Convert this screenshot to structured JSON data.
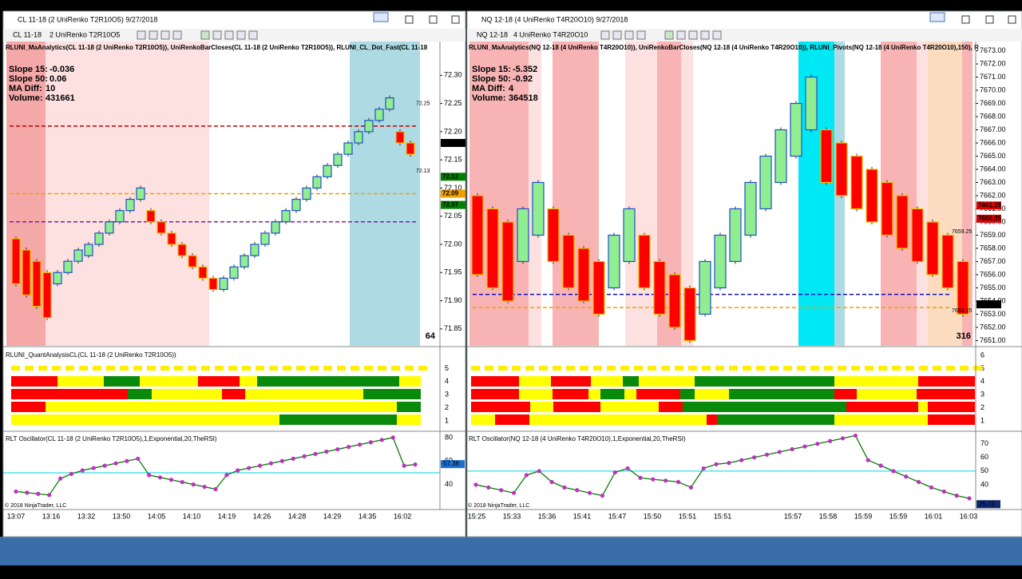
{
  "windows": [
    {
      "title": "CL 11-18 (2 UniRenko T2R10O5)  9/27/2018",
      "instrument": "CL 11-18",
      "bars_type": "2 UniRenko T2R10O5",
      "main": {
        "header": "RLUNI_MaAnalytics(CL 11-18 (2 UniRenko T2R10O5)), UniRenkoBarCloses(CL 11-18 (2 UniRenko T2R10O5)), RLUNI_CL_Dot_Fast(CL 11-18",
        "stats": [
          {
            "label": "Slope 15:",
            "value": -0.036,
            "color": "#e00000"
          },
          {
            "label": "Slope 50:",
            "value": 0.06,
            "color": "#008000"
          },
          {
            "label": "MA Diff:",
            "value": 10,
            "color": "#000000"
          },
          {
            "label": "Volume:",
            "value": 431661,
            "color": "#000000"
          }
        ],
        "ylim": [
          71.82,
          72.36
        ],
        "yticks": [
          {
            "value": 72.3,
            "label": "72.30"
          },
          72.25,
          {
            "value": 72.2,
            "label": "72.20"
          },
          72.15,
          {
            "value": 72.1,
            "label": "72.10"
          },
          72.05,
          {
            "value": 72,
            "label": "72.00"
          },
          71.95,
          {
            "value": 71.9,
            "label": "71.90"
          },
          71.85
        ],
        "candles": {
          "open": [
            72.01,
            71.99,
            71.97,
            71.95,
            71.93,
            71.95,
            71.97,
            71.98,
            72.0,
            72.02,
            72.04,
            72.06,
            72.08,
            72.06,
            72.04,
            72.02,
            72.0,
            71.98,
            71.96,
            71.94,
            71.92,
            71.94,
            71.96,
            71.98,
            72.0,
            72.02,
            72.04,
            72.06,
            72.08,
            72.1,
            72.12,
            72.14,
            72.16,
            72.18,
            72.2,
            72.22,
            72.24,
            72.2,
            72.18
          ],
          "close": [
            71.93,
            71.91,
            71.89,
            71.87,
            71.95,
            71.97,
            71.99,
            72.0,
            72.02,
            72.04,
            72.06,
            72.08,
            72.1,
            72.04,
            72.02,
            72.0,
            71.98,
            71.96,
            71.94,
            71.92,
            71.94,
            71.96,
            71.98,
            72.0,
            72.02,
            72.04,
            72.06,
            72.08,
            72.1,
            72.12,
            72.14,
            72.16,
            72.18,
            72.2,
            72.22,
            72.24,
            72.26,
            72.18,
            72.16
          ]
        },
        "levels": [
          {
            "value": 72.21,
            "color": "#c00000"
          },
          {
            "value": 72.09,
            "color": "#f0a000"
          },
          {
            "value": 72.04,
            "color": "#7a1fa0"
          }
        ],
        "price_markers": [
          {
            "value": 72.25,
            "color": "none"
          },
          {
            "value": 72.13,
            "color": "none"
          },
          {
            "value": 72.18,
            "color": "#000000"
          },
          {
            "value": 72.12,
            "color": "#008000"
          },
          {
            "value": 72.09,
            "color": "#f0a000"
          },
          {
            "value": 72.07,
            "color": "#008000"
          }
        ],
        "bar_count": 64
      },
      "quant": {
        "header": "RLUNI_QuantAnalysisCL(CL 11-18 (2 UniRenko T2R10O5))",
        "ticks": [
          1,
          2,
          3,
          4,
          5
        ]
      },
      "oscillator": {
        "header": "RLT Oscillator(CL 11-18 (2 UniRenko T2R10O5),1,Exponential,20,TheRSI)",
        "ylim": [
          20,
          84
        ],
        "yticks": [
          40,
          60,
          80
        ],
        "level": 50,
        "values": [
          34,
          33,
          32,
          31,
          45,
          49,
          52,
          54,
          56,
          58,
          60,
          62,
          48,
          46,
          44,
          42,
          40,
          38,
          36,
          48,
          52,
          54,
          56,
          58,
          60,
          62,
          64,
          66,
          68,
          70,
          72,
          74,
          76,
          78,
          80,
          56,
          57
        ],
        "last": 57.36,
        "last_color": "#1e6fd0",
        "copyright": "© 2018 NinjaTrader, LLC"
      },
      "time_labels": [
        "13:07",
        "13:16",
        "13:32",
        "13:50",
        "14:05",
        "14:10",
        "14:19",
        "14:26",
        "14:28",
        "14:29",
        "14:35",
        "16:02"
      ]
    },
    {
      "title": "NQ 12-18 (4 UniRenko T4R20O10)  9/27/2018",
      "instrument": "NQ 12-18",
      "bars_type": "4 UniRenko T4R20O10",
      "main": {
        "header": "RLUNI_MaAnalytics(NQ 12-18 (4 UniRenko T4R20O10)), UniRenkoBarCloses(NQ 12-18 (4 UniRenko T4R20O10)), RLUNI_Pivots(NQ 12-18 (4 UniRenko T4R20O10),150), R",
        "stats": [
          {
            "label": "Slope 15:",
            "value": -5.352,
            "color": "#e00000"
          },
          {
            "label": "Slope 50:",
            "value": -0.92,
            "color": "#e00000"
          },
          {
            "label": "MA Diff:",
            "value": 4,
            "color": "#000000"
          },
          {
            "label": "Volume:",
            "value": 364518,
            "color": "#000000"
          }
        ],
        "ylim": [
          7650.6,
          7673.7
        ],
        "yticks": [
          {
            "value": 7651,
            "label": "7651.00"
          },
          {
            "value": 7652,
            "label": "7652.00"
          },
          {
            "value": 7653,
            "label": "7653.00"
          },
          {
            "value": 7654,
            "label": "7654.00"
          },
          {
            "value": 7655,
            "label": "7655.00"
          },
          {
            "value": 7656,
            "label": "7656.00"
          },
          {
            "value": 7657,
            "label": "7657.00"
          },
          {
            "value": 7658,
            "label": "7658.00"
          },
          {
            "value": 7659,
            "label": "7659.00"
          },
          {
            "value": 7660,
            "label": "7660.00"
          },
          {
            "value": 7661,
            "label": "7661.00"
          },
          {
            "value": 7662,
            "label": "7662.00"
          },
          {
            "value": 7663,
            "label": "7663.00"
          },
          {
            "value": 7664,
            "label": "7664.00"
          },
          {
            "value": 7665,
            "label": "7665.00"
          },
          {
            "value": 7666,
            "label": "7666.00"
          },
          {
            "value": 7667,
            "label": "7667.00"
          },
          {
            "value": 7668,
            "label": "7668.00"
          },
          {
            "value": 7669,
            "label": "7669.00"
          },
          {
            "value": 7670,
            "label": "7670.00"
          },
          {
            "value": 7671,
            "label": "7671.00"
          },
          {
            "value": 7672,
            "label": "7672.00"
          },
          {
            "value": 7673,
            "label": "7673.00"
          }
        ],
        "candles": {
          "open": [
            7662,
            7661,
            7660,
            7657,
            7659,
            7661,
            7659,
            7658,
            7657,
            7655,
            7657,
            7659,
            7657,
            7656,
            7655,
            7653,
            7655,
            7657,
            7659,
            7661,
            7663,
            7665,
            7667,
            7667,
            7666,
            7665,
            7664,
            7663,
            7662,
            7661,
            7660,
            7659,
            7657
          ],
          "close": [
            7656,
            7655,
            7654,
            7661,
            7663,
            7657,
            7655,
            7654,
            7653,
            7659,
            7661,
            7655,
            7653,
            7652,
            7651,
            7657,
            7659,
            7661,
            7663,
            7665,
            7667,
            7669,
            7671,
            7663,
            7662,
            7661,
            7660,
            7659,
            7658,
            7657,
            7656,
            7655,
            7653
          ]
        },
        "levels": [
          {
            "value": 7654.5,
            "color": "#1010c0"
          },
          {
            "value": 7653.5,
            "color": "#f0a000"
          }
        ],
        "price_markers": [
          {
            "value": 7659.25,
            "color": "none"
          },
          {
            "value": 7653.25,
            "color": "none"
          },
          {
            "value": 7661.25,
            "color": "#e00000"
          },
          {
            "value": 7660.25,
            "color": "#e00000"
          },
          {
            "value": 7653.75,
            "color": "#000000"
          }
        ],
        "bar_count": 316
      },
      "quant": {
        "header": "",
        "ticks": [
          1,
          2,
          3,
          4,
          5,
          6
        ]
      },
      "oscillator": {
        "header": "RLT Oscillator(NQ 12-18 (4 UniRenko T4R20O10),1,Exponential,20,TheRSI)",
        "ylim": [
          23,
          78
        ],
        "yticks": [
          40,
          50,
          60,
          70
        ],
        "level": 50,
        "values": [
          40,
          38,
          36,
          34,
          47,
          50,
          42,
          38,
          36,
          34,
          32,
          49,
          52,
          45,
          44,
          43,
          42,
          38,
          52,
          55,
          56,
          58,
          60,
          62,
          64,
          66,
          68,
          70,
          72,
          74,
          76,
          58,
          54,
          50,
          46,
          42,
          38,
          35,
          32,
          30
        ],
        "last": 25.72,
        "last_color": "#102a70",
        "copyright": "© 2018 NinjaTrader, LLC"
      },
      "time_labels": [
        "15:25",
        "15:33",
        "15:36",
        "15:41",
        "15:47",
        "15:50",
        "15:51",
        "15:51",
        null,
        "15:57",
        "15:58",
        "15:59",
        "15:59",
        "16:01",
        "16:03"
      ]
    }
  ]
}
